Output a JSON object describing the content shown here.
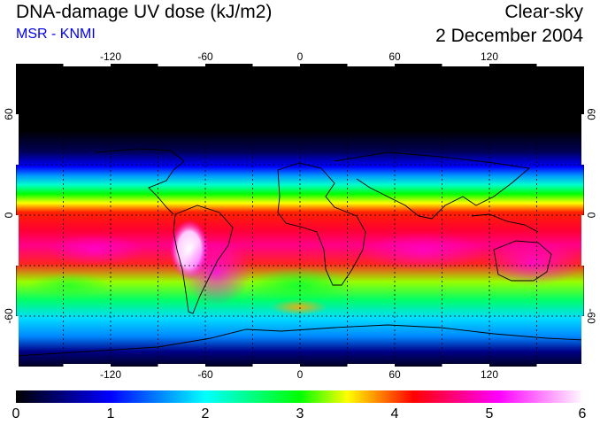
{
  "header": {
    "title": "DNA-damage UV dose (kJ/m2)",
    "source": "MSR - KNMI",
    "condition": "Clear-sky",
    "date": "2 December 2004"
  },
  "colors": {
    "source_text": "#0000ee",
    "background": "#ffffff",
    "colorbar_stops": [
      "#000000",
      "#0000ff",
      "#00ffff",
      "#00ff00",
      "#ffff00",
      "#ff0000",
      "#ff00ff",
      "#ffffff"
    ]
  },
  "map": {
    "lon_ticks_top": [
      "-120",
      "-60",
      "0",
      "60",
      "120"
    ],
    "lon_ticks_bottom": [
      "-120",
      "-60",
      "0",
      "60",
      "120"
    ],
    "lat_ticks_left": [
      "60",
      "0",
      "-60"
    ],
    "lat_ticks_right": [
      "60",
      "0",
      "-60"
    ],
    "lon_range": [
      -180,
      180
    ],
    "lat_range": [
      -90,
      90
    ]
  },
  "colorbar": {
    "min": 0,
    "max": 6,
    "ticks": [
      "0",
      "1",
      "2",
      "3",
      "4",
      "5",
      "6"
    ]
  }
}
